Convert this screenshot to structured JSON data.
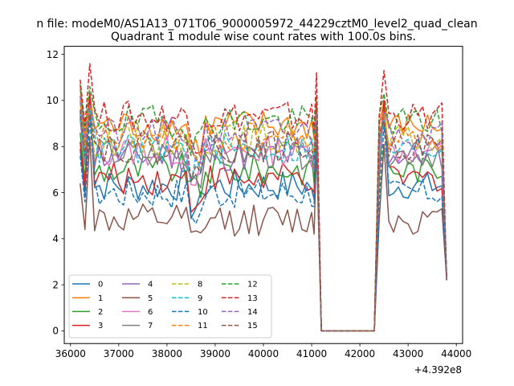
{
  "figure": {
    "suptitle": "n file: modeM0/AS1A13_071T06_9000005972_44229cztM0_level2_quad_clean"
  },
  "chart_data": {
    "type": "line",
    "title": "Quadrant 1 module wise count rates with 100.0s bins.",
    "xlabel": "",
    "ylabel": "",
    "x_offset_label": "+4.392e8",
    "x_ticks": [
      36000,
      37000,
      38000,
      39000,
      40000,
      41000,
      42000,
      43000,
      44000
    ],
    "x_tick_labels": [
      "36000",
      "37000",
      "38000",
      "39000",
      "40000",
      "41000",
      "42000",
      "43000",
      "44000"
    ],
    "y_ticks": [
      0,
      2,
      4,
      6,
      8,
      10,
      12
    ],
    "y_tick_labels": [
      "0",
      "2",
      "4",
      "6",
      "8",
      "10",
      "12"
    ],
    "xlim": [
      35870,
      44130
    ],
    "ylim": [
      -0.55,
      12.35
    ],
    "grid": false,
    "legend_position": "lower-left",
    "legend_columns": 4,
    "x_segments": [
      {
        "start": 36200,
        "end": 41100,
        "step": 100
      },
      {
        "start": 41200,
        "end": 42300,
        "step": 100
      },
      {
        "start": 42400,
        "end": 43800,
        "step": 100
      }
    ],
    "series": [
      {
        "name": "0",
        "color": "#1f77b4",
        "dash": "solid",
        "baseline": 6.3,
        "peak": 10.3
      },
      {
        "name": "1",
        "color": "#ff7f0e",
        "dash": "solid",
        "baseline": 8.9,
        "peak": 10.3
      },
      {
        "name": "2",
        "color": "#2ca02c",
        "dash": "solid",
        "baseline": 7.0,
        "peak": 10.0
      },
      {
        "name": "3",
        "color": "#d62728",
        "dash": "solid",
        "baseline": 6.6,
        "peak": 10.3
      },
      {
        "name": "4",
        "color": "#9467bd",
        "dash": "solid",
        "baseline": 7.6,
        "peak": 9.5
      },
      {
        "name": "5",
        "color": "#8c564b",
        "dash": "solid",
        "baseline": 4.8,
        "peak": 8.4
      },
      {
        "name": "6",
        "color": "#e377c2",
        "dash": "solid",
        "baseline": 7.8,
        "peak": 9.5
      },
      {
        "name": "7",
        "color": "#7f7f7f",
        "dash": "solid",
        "baseline": 7.7,
        "peak": 9.5
      },
      {
        "name": "8",
        "color": "#bcbd22",
        "dash": "dashed",
        "baseline": 8.3,
        "peak": 9.8
      },
      {
        "name": "9",
        "color": "#17becf",
        "dash": "dashed",
        "baseline": 7.9,
        "peak": 9.6
      },
      {
        "name": "10",
        "color": "#1f77b4",
        "dash": "dashed",
        "baseline": 6.0,
        "peak": 9.2
      },
      {
        "name": "11",
        "color": "#ff7f0e",
        "dash": "dashed",
        "baseline": 8.4,
        "peak": 9.8
      },
      {
        "name": "12",
        "color": "#2ca02c",
        "dash": "dashed",
        "baseline": 9.1,
        "peak": 10.6
      },
      {
        "name": "13",
        "color": "#d62728",
        "dash": "dashed",
        "baseline": 9.3,
        "peak": 11.6
      },
      {
        "name": "14",
        "color": "#9467bd",
        "dash": "dashed",
        "baseline": 8.6,
        "peak": 9.8
      },
      {
        "name": "15",
        "color": "#8c564b",
        "dash": "dashed",
        "baseline": 8.0,
        "peak": 9.4
      }
    ]
  }
}
